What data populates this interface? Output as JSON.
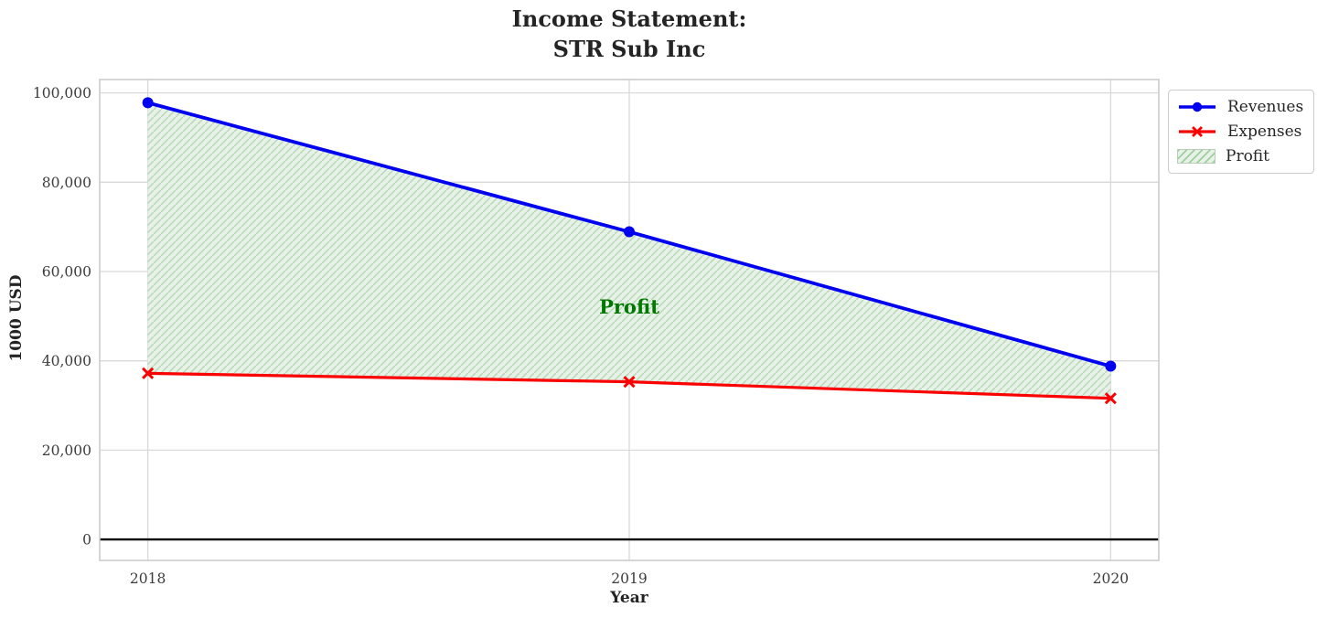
{
  "chart_data": {
    "type": "line",
    "title": "Income Statement:\nSTR Sub Inc",
    "title_lines": [
      "Income Statement:",
      "STR Sub Inc"
    ],
    "xlabel": "Year",
    "ylabel": "1000 USD",
    "x": [
      2018,
      2019,
      2020
    ],
    "series": [
      {
        "name": "Revenues",
        "values": [
          97800,
          68900,
          38800
        ],
        "color": "#0000f0",
        "marker": "circle"
      },
      {
        "name": "Expenses",
        "values": [
          37200,
          35300,
          31600
        ],
        "color": "#fb0000",
        "marker": "x"
      }
    ],
    "area": {
      "name": "Profit",
      "between": [
        "Revenues",
        "Expenses"
      ],
      "fill_color": "#e8f1e8",
      "hatch_color": "#b5d8b5",
      "hatch_style": "diagonal"
    },
    "annotation": {
      "text": "Profit",
      "x": 2019,
      "y": 52000,
      "color": "#007800"
    },
    "xticks": [
      "2018",
      "2019",
      "2020"
    ],
    "yticks": [
      0,
      20000,
      40000,
      60000,
      80000,
      100000
    ],
    "ytick_labels": [
      "0",
      "20,000",
      "40,000",
      "60,000",
      "80,000",
      "100,000"
    ],
    "xlim": [
      2017.9,
      2020.1
    ],
    "ylim": [
      -4700,
      103000
    ],
    "grid": true,
    "zero_line": true,
    "legend_position": "outside upper right",
    "legend": [
      "Revenues",
      "Expenses",
      "Profit"
    ],
    "colors": {
      "grid": "#d9d9d9",
      "spine": "#cccccc",
      "zero_line": "#000000",
      "tick_text": "#3c3c3c",
      "label_text": "#242424"
    }
  }
}
